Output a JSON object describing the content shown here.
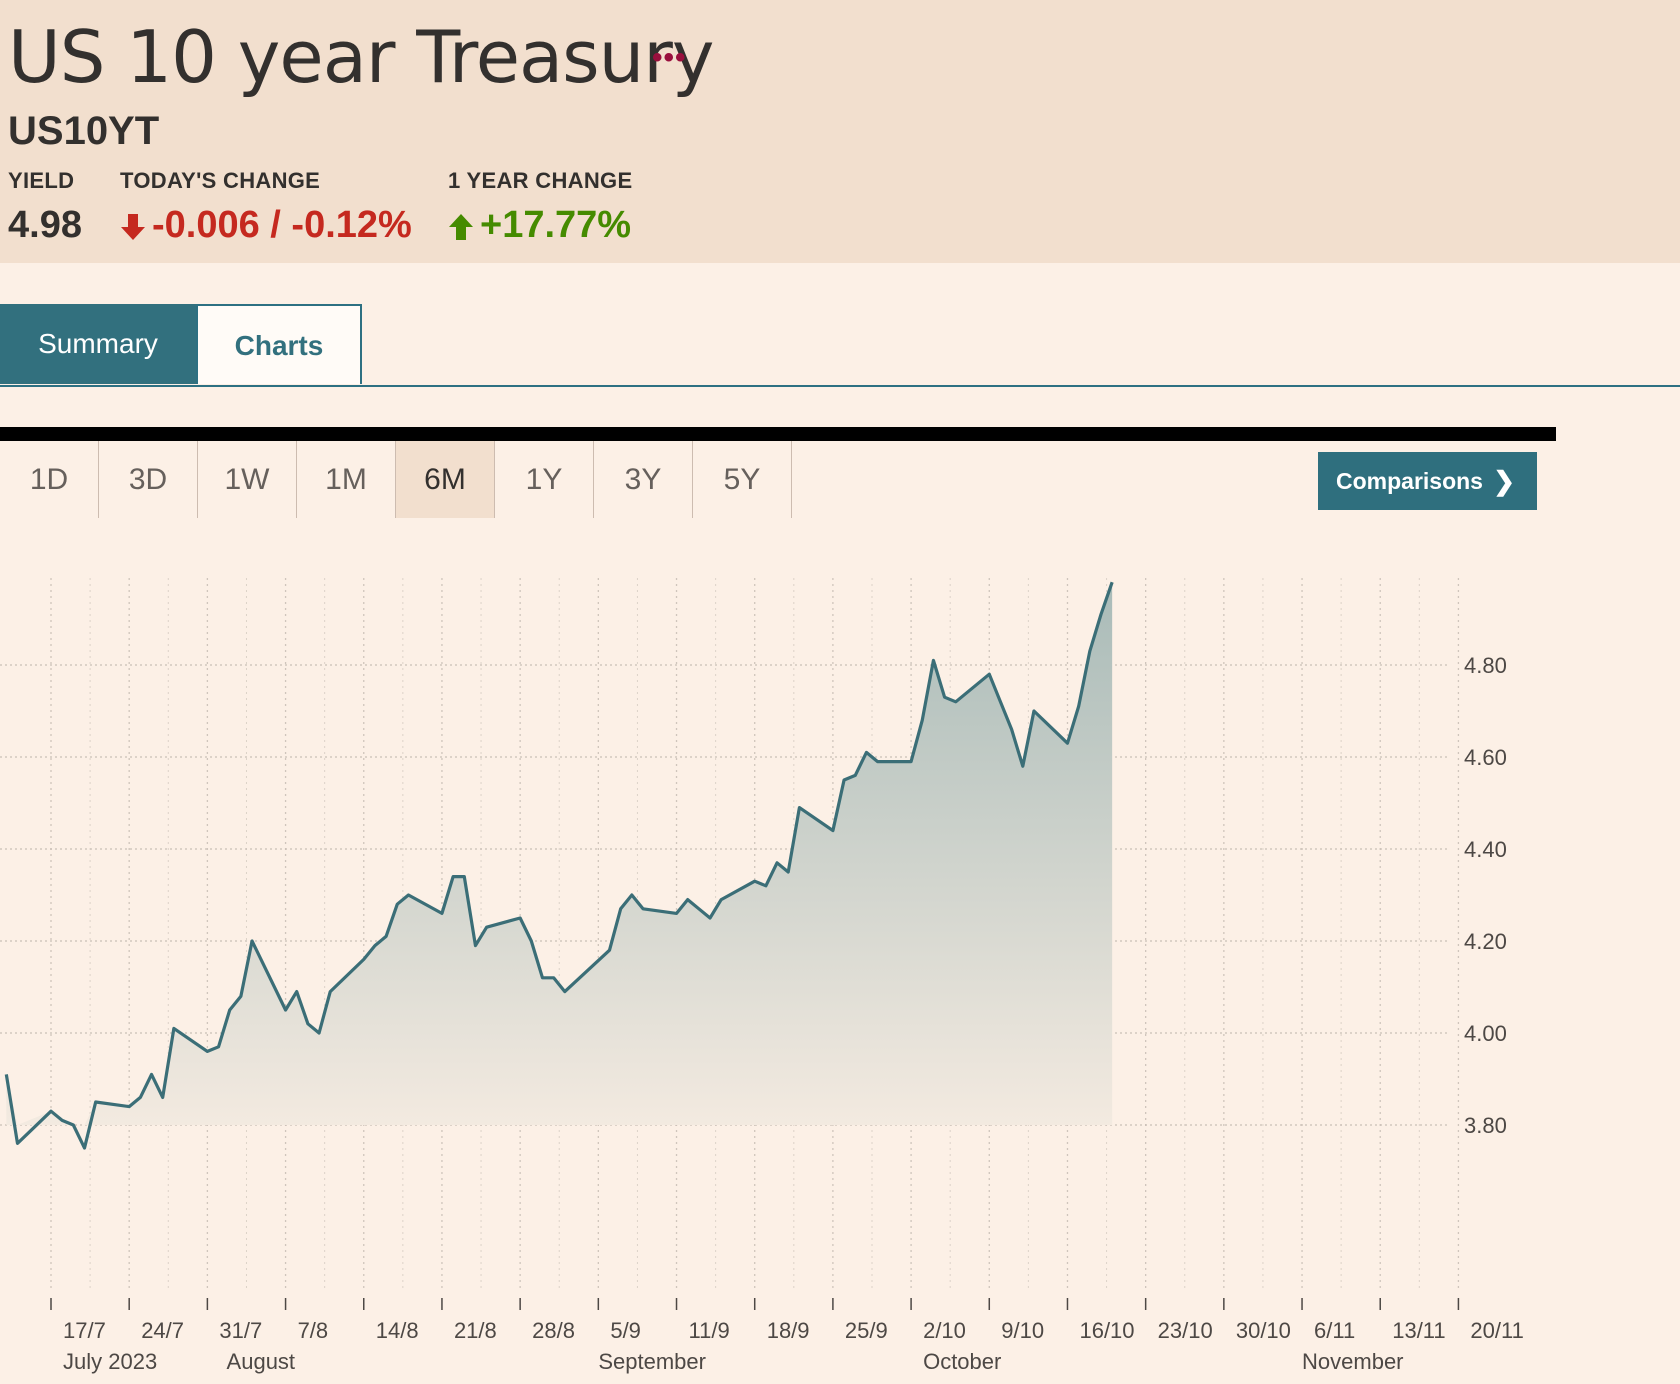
{
  "header": {
    "title": "US 10 year Treasury",
    "more_icon": "more-dots-icon",
    "symbol": "US10YT",
    "yield_label": "YIELD",
    "yield_value": "4.98",
    "today_label": "TODAY'S CHANGE",
    "today_value": "-0.006 / -0.12%",
    "today_icon": "arrow-down-icon",
    "year_label": "1 YEAR CHANGE",
    "year_value": "+17.77%",
    "year_icon": "arrow-up-icon"
  },
  "tabs": [
    {
      "label": "Summary"
    },
    {
      "label": "Charts"
    }
  ],
  "periods": [
    "1D",
    "3D",
    "1W",
    "1M",
    "6M",
    "1Y",
    "3Y",
    "5Y"
  ],
  "active_period": "6M",
  "comparisons_label": "Comparisons",
  "colors": {
    "header_bg": "#f2dfce",
    "page_bg": "#fcf0e6",
    "accent": "#32707e",
    "line": "#3b6e77",
    "down": "#c5291f",
    "up": "#458b00"
  },
  "chart_data": {
    "type": "area",
    "title": "",
    "xlabel": "",
    "ylabel": "",
    "y_axis_position": "right",
    "grid": true,
    "ylim": [
      3.6,
      5.0
    ],
    "yticks": [
      "3.80",
      "4.00",
      "4.20",
      "4.40",
      "4.60",
      "4.80"
    ],
    "xticks": [
      "17/7",
      "24/7",
      "31/7",
      "7/8",
      "14/8",
      "21/8",
      "28/8",
      "5/9",
      "11/9",
      "18/9",
      "25/9",
      "2/10",
      "9/10",
      "16/10",
      "23/10",
      "30/10",
      "6/11",
      "13/11",
      "20/11"
    ],
    "months": [
      "July 2023",
      "August",
      "September",
      "October",
      "November"
    ],
    "x": [
      "2023-07-13",
      "2023-07-14",
      "2023-07-17",
      "2023-07-18",
      "2023-07-19",
      "2023-07-20",
      "2023-07-21",
      "2023-07-24",
      "2023-07-25",
      "2023-07-26",
      "2023-07-27",
      "2023-07-28",
      "2023-07-31",
      "2023-08-01",
      "2023-08-02",
      "2023-08-03",
      "2023-08-04",
      "2023-08-07",
      "2023-08-08",
      "2023-08-09",
      "2023-08-10",
      "2023-08-11",
      "2023-08-14",
      "2023-08-15",
      "2023-08-16",
      "2023-08-17",
      "2023-08-18",
      "2023-08-21",
      "2023-08-22",
      "2023-08-23",
      "2023-08-24",
      "2023-08-25",
      "2023-08-28",
      "2023-08-29",
      "2023-08-30",
      "2023-08-31",
      "2023-09-01",
      "2023-09-05",
      "2023-09-06",
      "2023-09-07",
      "2023-09-08",
      "2023-09-11",
      "2023-09-12",
      "2023-09-13",
      "2023-09-14",
      "2023-09-15",
      "2023-09-18",
      "2023-09-19",
      "2023-09-20",
      "2023-09-21",
      "2023-09-22",
      "2023-09-25",
      "2023-09-26",
      "2023-09-27",
      "2023-09-28",
      "2023-09-29",
      "2023-10-02",
      "2023-10-03",
      "2023-10-04",
      "2023-10-05",
      "2023-10-06",
      "2023-10-09",
      "2023-10-10",
      "2023-10-11",
      "2023-10-12",
      "2023-10-13",
      "2023-10-16",
      "2023-10-17",
      "2023-10-18",
      "2023-10-19",
      "2023-10-20"
    ],
    "values": [
      3.91,
      3.76,
      3.83,
      3.81,
      3.8,
      3.75,
      3.85,
      3.84,
      3.86,
      3.91,
      3.86,
      4.01,
      3.96,
      3.97,
      4.05,
      4.08,
      4.2,
      4.05,
      4.09,
      4.02,
      4.0,
      4.09,
      4.16,
      4.19,
      4.21,
      4.28,
      4.3,
      4.26,
      4.34,
      4.34,
      4.19,
      4.23,
      4.25,
      4.2,
      4.12,
      4.12,
      4.09,
      4.18,
      4.27,
      4.3,
      4.27,
      4.26,
      4.29,
      4.27,
      4.25,
      4.29,
      4.33,
      4.32,
      4.37,
      4.35,
      4.49,
      4.44,
      4.55,
      4.56,
      4.61,
      4.59,
      4.59,
      4.68,
      4.81,
      4.73,
      4.72,
      4.78,
      4.72,
      4.66,
      4.58,
      4.7,
      4.63,
      4.71,
      4.83,
      4.91,
      4.98
    ],
    "last_value": 4.98
  }
}
